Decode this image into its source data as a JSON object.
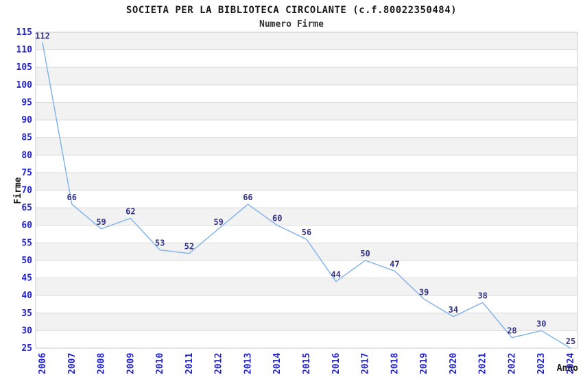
{
  "chart_data": {
    "type": "line",
    "title": "SOCIETA PER LA BIBLIOTECA CIRCOLANTE (c.f.80022350484)",
    "subtitle": "Numero Firme",
    "xlabel": "Anno",
    "ylabel": "Firme",
    "categories": [
      "2006",
      "2007",
      "2008",
      "2009",
      "2010",
      "2011",
      "2012",
      "2013",
      "2014",
      "2015",
      "2016",
      "2017",
      "2018",
      "2019",
      "2020",
      "2021",
      "2022",
      "2023",
      "2024"
    ],
    "series": [
      {
        "name": "Numero Firme",
        "values": [
          112,
          66,
          59,
          62,
          53,
          52,
          59,
          66,
          60,
          56,
          44,
          50,
          47,
          39,
          34,
          38,
          28,
          30,
          25
        ]
      }
    ],
    "ylim": [
      25,
      115
    ],
    "ytick_step": 5,
    "grid": true,
    "legend_position": "none",
    "point_labels": true,
    "colors": {
      "line": "#85B5E8",
      "tick_label": "#2222CC",
      "point_label": "#333388",
      "band": "#F2F2F2",
      "grid": "#DCDCDC",
      "border": "#C8C8C8",
      "title": "#1A1A1A",
      "axis_title": "#1A1A1A"
    }
  }
}
